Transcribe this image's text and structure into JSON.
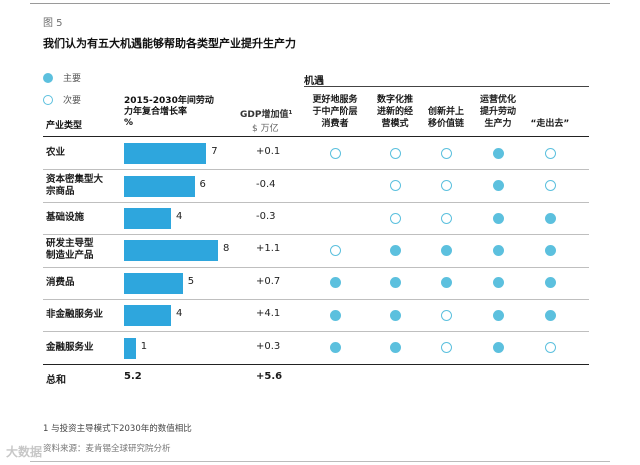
{
  "figure_label": "图 5",
  "title": "我们认为有五大机遇能够帮助各类型产业提升生产力",
  "legend": {
    "primary": "主要",
    "secondary": "次要"
  },
  "columns": {
    "industry": "产业类型",
    "growth": "2015-2030年间劳动力年复合增长率 %",
    "growth_lines": [
      "2015-2030年间劳动",
      "力年复合增长率",
      "%"
    ],
    "gdp": "GDP增加值¹",
    "gdp_unit": "$ 万亿"
  },
  "opportunities_header": "机遇",
  "opportunities": [
    {
      "lines": [
        "更好地服务",
        "于中产阶层",
        "消费者"
      ]
    },
    {
      "lines": [
        "数字化推",
        "进新的经",
        "营模式"
      ]
    },
    {
      "lines": [
        "创新并上",
        "移价值链"
      ]
    },
    {
      "lines": [
        "运营优化",
        "提升劳动",
        "生产力"
      ]
    },
    {
      "lines": [
        "“走出去”"
      ]
    }
  ],
  "chart_data": {
    "type": "table",
    "title": "我们认为有五大机遇能够帮助各类型产业提升生产力",
    "categories": [
      "农业",
      "资本密集型大宗商品",
      "基础设施",
      "研发主导型制造业产品",
      "消费品",
      "非金融服务业",
      "金融服务业"
    ],
    "category_lines": [
      [
        "农业"
      ],
      [
        "资本密集型大",
        "宗商品"
      ],
      [
        "基础设施"
      ],
      [
        "研发主导型",
        "制造业产品"
      ],
      [
        "消费品"
      ],
      [
        "非金融服务业"
      ],
      [
        "金融服务业"
      ]
    ],
    "series": [
      {
        "name": "2015-2030年间劳动力年复合增长率 %",
        "values": [
          7,
          6,
          4,
          8,
          5,
          4,
          1
        ]
      },
      {
        "name": "GDP增加值¹ $ 万亿",
        "values": [
          "+0.1",
          "-0.4",
          "-0.3",
          "+1.1",
          "+0.7",
          "+4.1",
          "+0.3"
        ]
      }
    ],
    "opportunity_matrix": [
      [
        "secondary",
        "secondary",
        "secondary",
        "primary",
        "secondary"
      ],
      [
        null,
        "secondary",
        "secondary",
        "primary",
        "secondary"
      ],
      [
        null,
        "secondary",
        "secondary",
        "primary",
        "primary"
      ],
      [
        "secondary",
        "primary",
        "primary",
        "primary",
        "primary"
      ],
      [
        "primary",
        "primary",
        "primary",
        "primary",
        "primary"
      ],
      [
        "primary",
        "primary",
        "secondary",
        "primary",
        "primary"
      ],
      [
        "primary",
        "primary",
        "secondary",
        "primary",
        "secondary"
      ]
    ],
    "totals": {
      "label": "总和",
      "growth": "5.2",
      "gdp": "+5.6"
    },
    "xlim": [
      0,
      8
    ]
  },
  "footnote": "1 与投资主导模式下2030年的数值相比",
  "source": "资料来源：麦肯锡全球研究院分析",
  "watermark": "大数据",
  "colors": {
    "bar": "#2ea6dd",
    "dot": "#5cc0de"
  }
}
